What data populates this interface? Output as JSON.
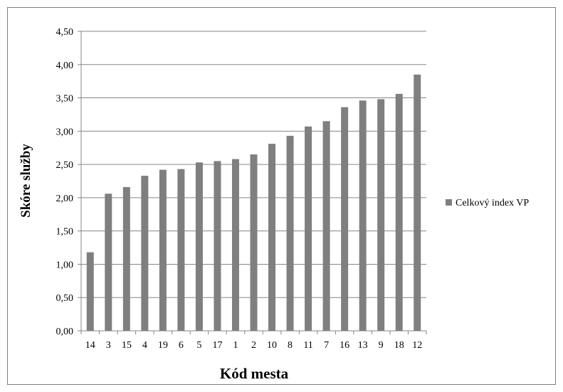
{
  "chart_data": {
    "type": "bar",
    "title": "",
    "xlabel": "Kód mesta",
    "ylabel": "Skóre služby",
    "ylim": [
      0,
      4.5
    ],
    "ytick_step": 0.5,
    "ytick_labels": [
      "0,00",
      "0,50",
      "1,00",
      "1,50",
      "2,00",
      "2,50",
      "3,00",
      "3,50",
      "4,00",
      "4,50"
    ],
    "grid": true,
    "legend_position": "right",
    "categories": [
      "14",
      "3",
      "15",
      "4",
      "19",
      "6",
      "5",
      "17",
      "1",
      "2",
      "10",
      "8",
      "11",
      "7",
      "16",
      "13",
      "9",
      "18",
      "12"
    ],
    "series": [
      {
        "name": "Celkový index VP",
        "color": "#7f7f7f",
        "values": [
          1.18,
          2.06,
          2.16,
          2.33,
          2.42,
          2.43,
          2.53,
          2.55,
          2.58,
          2.65,
          2.81,
          2.93,
          3.07,
          3.15,
          3.36,
          3.46,
          3.48,
          3.56,
          3.85
        ]
      }
    ]
  }
}
